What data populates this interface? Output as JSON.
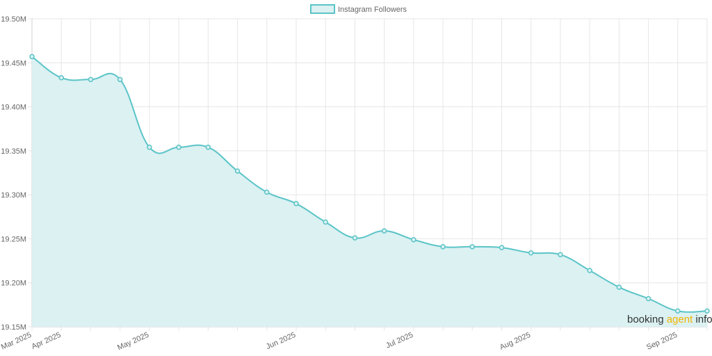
{
  "chart_data": {
    "type": "area",
    "legend": {
      "label": "Instagram Followers",
      "position": "top"
    },
    "series": [
      {
        "name": "Instagram Followers",
        "color": "#5bc4c7",
        "fill": "#dbf1f2",
        "values": [
          19.457,
          19.433,
          19.431,
          19.431,
          19.354,
          19.354,
          19.354,
          19.327,
          19.303,
          19.29,
          19.269,
          19.251,
          19.259,
          19.249,
          19.241,
          19.241,
          19.24,
          19.234,
          19.232,
          19.214,
          19.195,
          19.182,
          19.168,
          19.168
        ]
      }
    ],
    "x_tick_labels": [
      "Mar 2025",
      "Apr 2025",
      "May 2025",
      "Jun 2025",
      "Jul 2025",
      "Aug 2025",
      "Sep 2025"
    ],
    "x_tick_positions": [
      0,
      1,
      4,
      9,
      13,
      17,
      22
    ],
    "y_ticks": [
      "19.50M",
      "19.45M",
      "19.40M",
      "19.35M",
      "19.30M",
      "19.25M",
      "19.20M",
      "19.15M"
    ],
    "ylim": [
      19.15,
      19.5
    ],
    "grid": true,
    "watermark": {
      "part1": "booking ",
      "part2": "agent",
      "part3": " info"
    }
  }
}
